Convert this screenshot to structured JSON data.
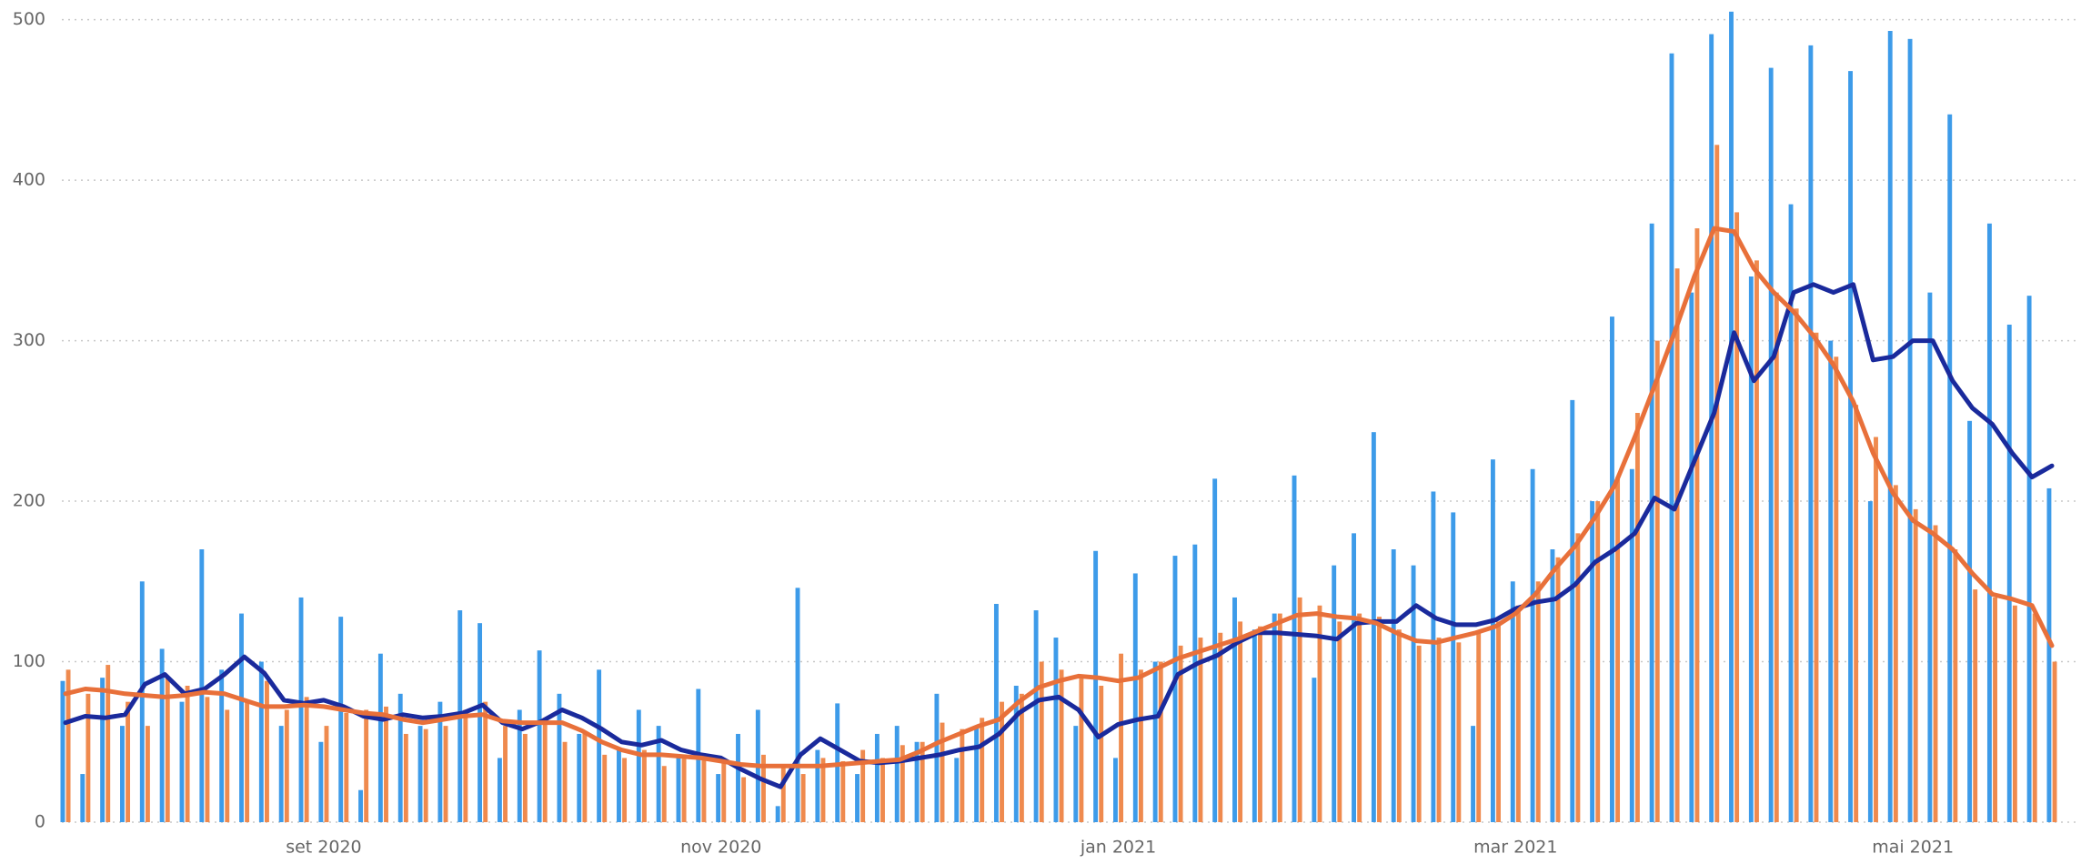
{
  "chart_data": {
    "type": "combo",
    "categories": [
      null,
      null,
      null,
      null,
      null,
      null,
      null,
      null,
      null,
      null,
      null,
      null,
      null,
      "set 2020",
      null,
      null,
      null,
      null,
      null,
      null,
      null,
      null,
      null,
      null,
      null,
      null,
      null,
      null,
      null,
      null,
      null,
      null,
      null,
      "nov 2020",
      null,
      null,
      null,
      null,
      null,
      null,
      null,
      null,
      null,
      null,
      null,
      null,
      null,
      null,
      null,
      null,
      null,
      null,
      null,
      "jan 2021",
      null,
      null,
      null,
      null,
      null,
      null,
      null,
      null,
      null,
      null,
      null,
      null,
      null,
      null,
      null,
      null,
      null,
      null,
      null,
      "mar 2021",
      null,
      null,
      null,
      null,
      null,
      null,
      null,
      null,
      null,
      null,
      null,
      null,
      null,
      null,
      null,
      null,
      null,
      null,
      null,
      "mai 2021",
      null,
      null,
      null,
      null,
      null,
      null,
      null
    ],
    "ylim": [
      0,
      510
    ],
    "yticks": [
      0,
      100,
      200,
      300,
      400,
      500
    ],
    "grid": true,
    "series": [
      {
        "type": "bar",
        "color": "#3d9be9",
        "values": [
          88,
          30,
          90,
          60,
          150,
          108,
          75,
          170,
          95,
          130,
          100,
          60,
          140,
          50,
          128,
          20,
          105,
          80,
          60,
          75,
          132,
          124,
          40,
          70,
          107,
          80,
          55,
          95,
          45,
          70,
          60,
          40,
          83,
          30,
          55,
          70,
          10,
          146,
          45,
          74,
          30,
          55,
          60,
          50,
          80,
          40,
          60,
          136,
          85,
          132,
          115,
          60,
          169,
          40,
          155,
          100,
          166,
          173,
          214,
          140,
          120,
          130,
          216,
          90,
          160,
          180,
          243,
          170,
          160,
          206,
          193,
          60,
          226,
          150,
          220,
          170,
          263,
          200,
          315,
          220,
          373,
          479,
          330,
          491,
          505,
          340,
          470,
          385,
          484,
          300,
          468,
          200,
          493,
          488,
          330,
          441,
          250,
          373,
          310,
          328,
          208
        ]
      },
      {
        "type": "bar",
        "color": "#ef8a4e",
        "values": [
          95,
          80,
          98,
          75,
          60,
          90,
          85,
          78,
          70,
          75,
          88,
          70,
          78,
          60,
          68,
          70,
          72,
          55,
          58,
          60,
          70,
          75,
          60,
          55,
          65,
          50,
          55,
          42,
          40,
          45,
          35,
          40,
          42,
          38,
          28,
          42,
          35,
          30,
          40,
          38,
          45,
          40,
          48,
          50,
          62,
          58,
          65,
          75,
          80,
          100,
          95,
          92,
          85,
          105,
          95,
          100,
          110,
          115,
          118,
          125,
          122,
          130,
          140,
          135,
          125,
          130,
          128,
          120,
          110,
          115,
          112,
          118,
          125,
          135,
          150,
          165,
          180,
          200,
          215,
          255,
          300,
          345,
          370,
          422,
          380,
          350,
          330,
          320,
          305,
          290,
          260,
          240,
          210,
          195,
          185,
          170,
          145,
          140,
          135,
          130,
          100
        ]
      },
      {
        "type": "line",
        "color": "#1a2a9c",
        "values": [
          62,
          66,
          65,
          67,
          86,
          92,
          80,
          83,
          92,
          103,
          93,
          76,
          74,
          76,
          72,
          66,
          64,
          67,
          65,
          66,
          68,
          73,
          62,
          58,
          63,
          70,
          65,
          58,
          50,
          48,
          51,
          45,
          42,
          40,
          33,
          27,
          22,
          42,
          52,
          45,
          38,
          37,
          38,
          40,
          42,
          45,
          47,
          55,
          68,
          76,
          78,
          70,
          53,
          61,
          64,
          66,
          92,
          99,
          104,
          112,
          118,
          118,
          117,
          116,
          114,
          124,
          125,
          125,
          135,
          127,
          123,
          123,
          126,
          133,
          137,
          139,
          148,
          162,
          170,
          180,
          202,
          195,
          225,
          255,
          305,
          275,
          290,
          330,
          335,
          330,
          335,
          288,
          290,
          300,
          300,
          275,
          258,
          248,
          230,
          215,
          222
        ]
      },
      {
        "type": "line",
        "color": "#e8703a",
        "values": [
          80,
          83,
          82,
          80,
          79,
          78,
          79,
          81,
          80,
          76,
          72,
          72,
          73,
          72,
          70,
          68,
          67,
          64,
          62,
          64,
          66,
          67,
          63,
          62,
          62,
          62,
          57,
          50,
          45,
          42,
          42,
          41,
          40,
          38,
          36,
          35,
          35,
          35,
          35,
          36,
          37,
          38,
          39,
          44,
          50,
          55,
          60,
          64,
          75,
          84,
          88,
          91,
          90,
          88,
          90,
          96,
          102,
          106,
          110,
          114,
          119,
          124,
          129,
          130,
          128,
          127,
          124,
          118,
          113,
          112,
          115,
          118,
          122,
          130,
          142,
          158,
          172,
          190,
          210,
          240,
          272,
          305,
          340,
          370,
          368,
          345,
          330,
          318,
          303,
          285,
          262,
          230,
          205,
          188,
          180,
          170,
          155,
          142,
          139,
          135,
          110
        ]
      }
    ]
  }
}
